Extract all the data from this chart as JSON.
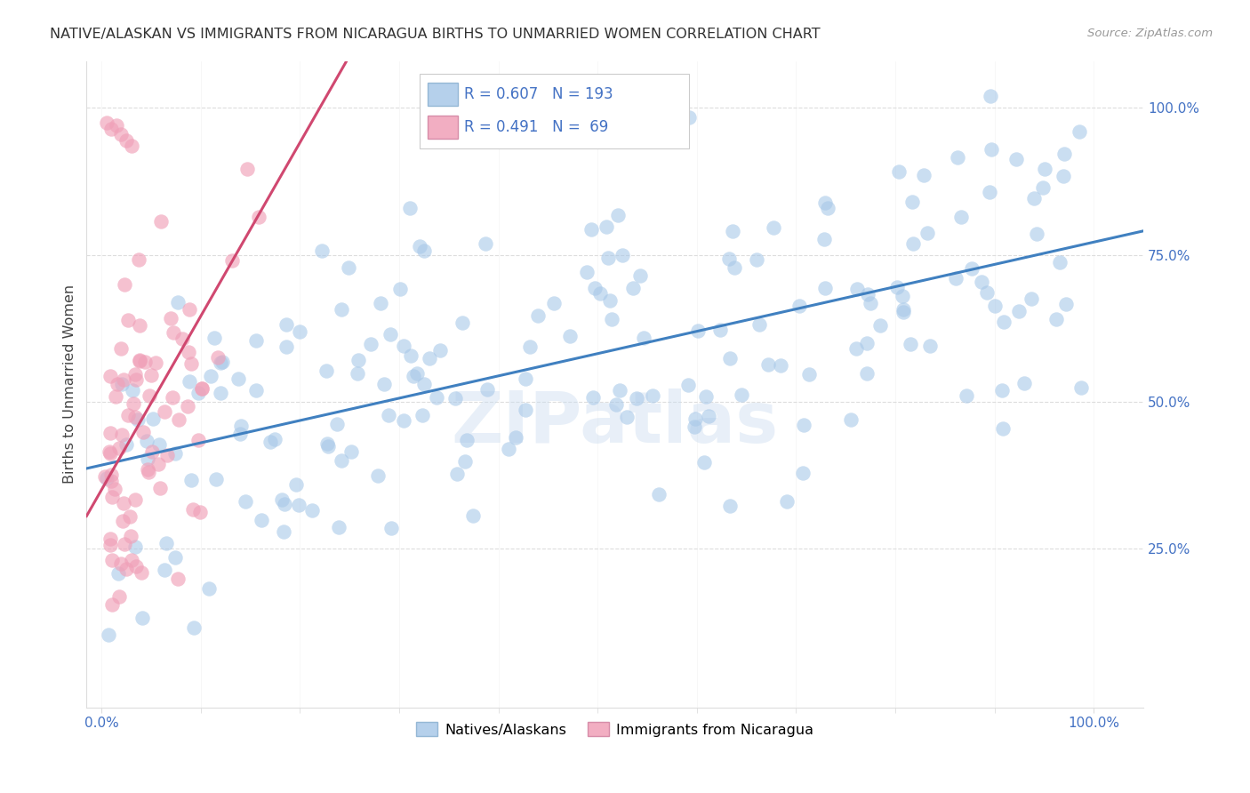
{
  "title": "NATIVE/ALASKAN VS IMMIGRANTS FROM NICARAGUA BIRTHS TO UNMARRIED WOMEN CORRELATION CHART",
  "source": "Source: ZipAtlas.com",
  "ylabel": "Births to Unmarried Women",
  "blue_R": 0.607,
  "blue_N": 193,
  "pink_R": 0.491,
  "pink_N": 69,
  "blue_color": "#a8c8e8",
  "pink_color": "#f0a0b8",
  "blue_line_color": "#4080c0",
  "pink_line_color": "#d04870",
  "legend_blue_label": "Natives/Alaskans",
  "legend_pink_label": "Immigrants from Nicaragua",
  "watermark": "ZIPatlas",
  "grid_color": "#dddddd",
  "axis_color": "#4472c4",
  "title_color": "#333333",
  "source_color": "#999999"
}
